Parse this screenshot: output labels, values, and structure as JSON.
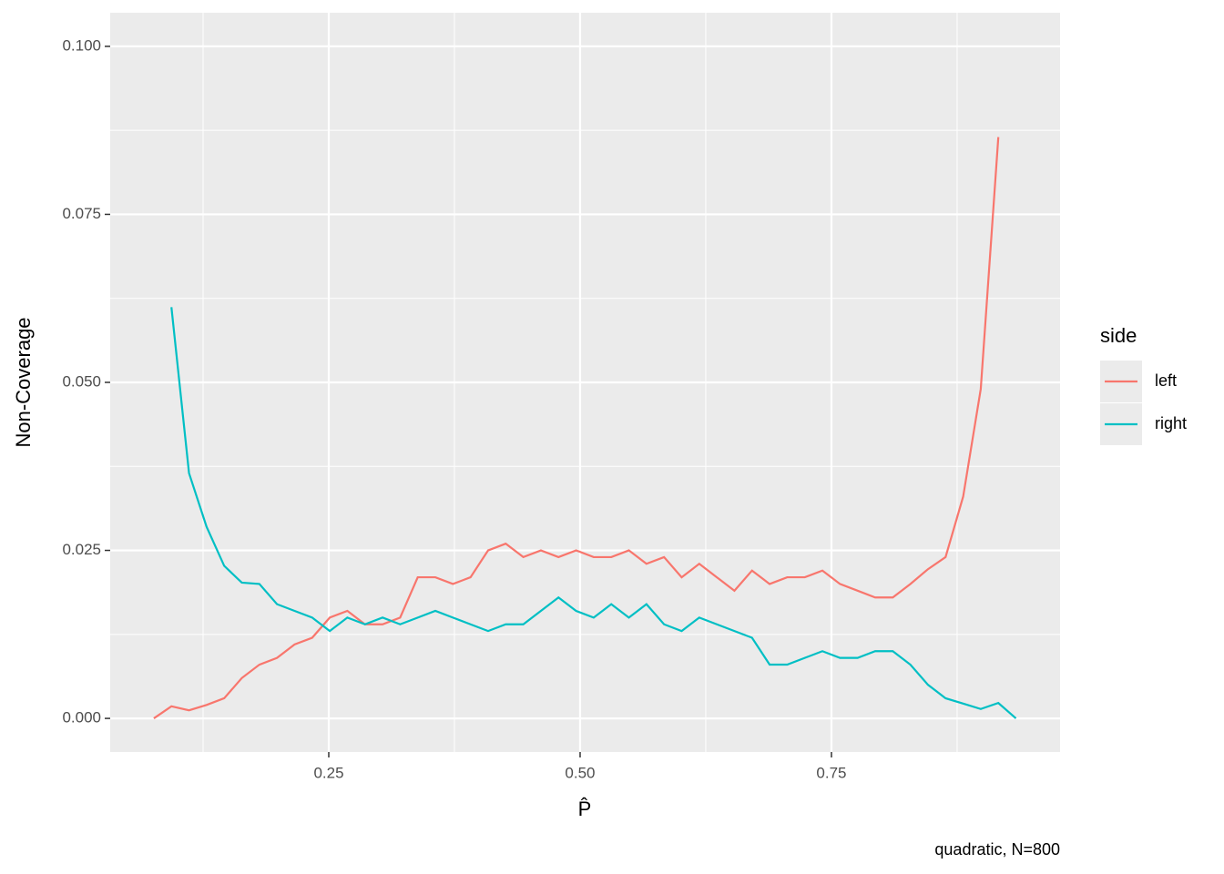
{
  "chart_data": {
    "type": "line",
    "x_label": "P̂",
    "y_label": "Non-Coverage",
    "caption": "quadratic, N=800",
    "legend_title": "side",
    "legend_position": "right",
    "grid": true,
    "minor_grid": true,
    "xlim": [
      0.0326,
      0.9774
    ],
    "ylim": [
      -0.005,
      0.105
    ],
    "xticks": [
      0.25,
      {
        "value": 0.5,
        "label": "0.50"
      },
      0.75
    ],
    "yticks": [
      {
        "value": 0,
        "label": "0.000"
      },
      {
        "value": 0.025,
        "label": "0.025"
      },
      {
        "value": 0.05,
        "label": "0.050"
      },
      {
        "value": 0.075,
        "label": "0.075"
      },
      {
        "value": 0.1,
        "label": "0.100"
      }
    ],
    "x": [
      0.076,
      0.0935,
      0.111,
      0.1285,
      0.146,
      0.1635,
      0.181,
      0.1985,
      0.216,
      0.2335,
      0.251,
      0.2685,
      0.286,
      0.3035,
      0.321,
      0.3385,
      0.356,
      0.3735,
      0.391,
      0.4085,
      0.426,
      0.4435,
      0.461,
      0.4785,
      0.496,
      0.5135,
      0.531,
      0.5485,
      0.566,
      0.5835,
      0.601,
      0.6185,
      0.636,
      0.6535,
      0.671,
      0.6885,
      0.706,
      0.7235,
      0.741,
      0.7585,
      0.776,
      0.7935,
      0.811,
      0.8285,
      0.846,
      0.8635,
      0.881,
      0.8985,
      0.916,
      0.9335
    ],
    "series": [
      {
        "name": "left",
        "color": "#F8766D",
        "values": [
          0,
          0.0018,
          0.0012,
          0.002,
          0.003,
          0.006,
          0.008,
          0.009,
          0.011,
          0.012,
          0.015,
          0.016,
          0.014,
          0.014,
          0.015,
          0.021,
          0.021,
          0.02,
          0.021,
          0.025,
          0.026,
          0.024,
          0.025,
          0.024,
          0.025,
          0.024,
          0.024,
          0.025,
          0.023,
          0.024,
          0.021,
          0.023,
          0.021,
          0.019,
          0.022,
          0.02,
          0.021,
          0.021,
          0.022,
          0.02,
          0.019,
          0.018,
          0.018,
          0.02,
          0.0222,
          0.024,
          0.033,
          0.049,
          0.0865,
          null
        ]
      },
      {
        "name": "right",
        "color": "#00BFC4",
        "values": [
          null,
          0.0612,
          0.0365,
          0.0285,
          0.0227,
          0.0202,
          0.02,
          0.017,
          0.016,
          0.015,
          0.013,
          0.015,
          0.014,
          0.015,
          0.014,
          0.015,
          0.016,
          0.015,
          0.014,
          0.013,
          0.014,
          0.014,
          0.016,
          0.018,
          0.016,
          0.015,
          0.017,
          0.015,
          0.017,
          0.014,
          0.013,
          0.015,
          0.014,
          0.013,
          0.012,
          0.008,
          0.008,
          0.009,
          0.01,
          0.009,
          0.009,
          0.01,
          0.01,
          0.008,
          0.005,
          0.003,
          0.0022,
          0.0014,
          0.0023,
          0
        ]
      }
    ]
  }
}
